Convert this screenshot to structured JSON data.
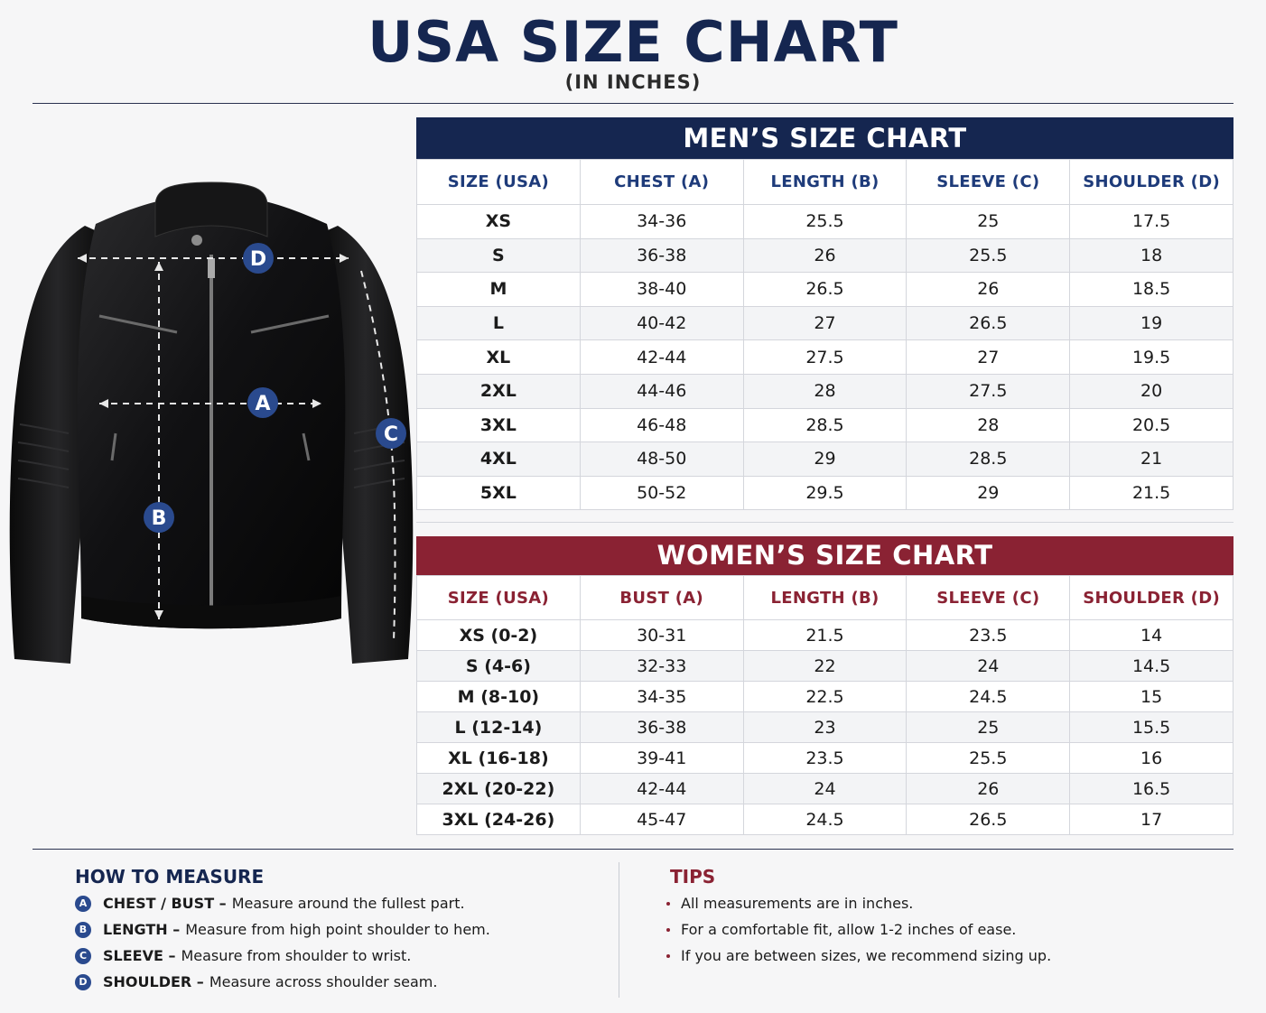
{
  "title": "USA SIZE CHART",
  "subtitle": "(IN INCHES)",
  "markers": {
    "a": "A",
    "b": "B",
    "c": "C",
    "d": "D"
  },
  "colors": {
    "navy": "#152650",
    "maroon": "#8a2233",
    "badge": "#2a4a8e"
  },
  "mens": {
    "heading": "MEN’S SIZE CHART",
    "columns": [
      "SIZE (USA)",
      "CHEST (A)",
      "LENGTH (B)",
      "SLEEVE (C)",
      "SHOULDER (D)"
    ],
    "rows": [
      [
        "XS",
        "34-36",
        "25.5",
        "25",
        "17.5"
      ],
      [
        "S",
        "36-38",
        "26",
        "25.5",
        "18"
      ],
      [
        "M",
        "38-40",
        "26.5",
        "26",
        "18.5"
      ],
      [
        "L",
        "40-42",
        "27",
        "26.5",
        "19"
      ],
      [
        "XL",
        "42-44",
        "27.5",
        "27",
        "19.5"
      ],
      [
        "2XL",
        "44-46",
        "28",
        "27.5",
        "20"
      ],
      [
        "3XL",
        "46-48",
        "28.5",
        "28",
        "20.5"
      ],
      [
        "4XL",
        "48-50",
        "29",
        "28.5",
        "21"
      ],
      [
        "5XL",
        "50-52",
        "29.5",
        "29",
        "21.5"
      ]
    ]
  },
  "womens": {
    "heading": "WOMEN’S SIZE CHART",
    "columns": [
      "SIZE (USA)",
      "BUST (A)",
      "LENGTH (B)",
      "SLEEVE (C)",
      "SHOULDER (D)"
    ],
    "rows": [
      [
        "XS (0-2)",
        "30-31",
        "21.5",
        "23.5",
        "14"
      ],
      [
        "S (4-6)",
        "32-33",
        "22",
        "24",
        "14.5"
      ],
      [
        "M (8-10)",
        "34-35",
        "22.5",
        "24.5",
        "15"
      ],
      [
        "L (12-14)",
        "36-38",
        "23",
        "25",
        "15.5"
      ],
      [
        "XL (16-18)",
        "39-41",
        "23.5",
        "25.5",
        "16"
      ],
      [
        "2XL (20-22)",
        "42-44",
        "24",
        "26",
        "16.5"
      ],
      [
        "3XL (24-26)",
        "45-47",
        "24.5",
        "26.5",
        "17"
      ]
    ]
  },
  "how_to_measure": {
    "title": "HOW TO MEASURE",
    "items": [
      {
        "badge": "A",
        "term": "CHEST / BUST –",
        "desc": "Measure around the fullest part."
      },
      {
        "badge": "B",
        "term": "LENGTH –",
        "desc": "Measure from high point shoulder to hem."
      },
      {
        "badge": "C",
        "term": "SLEEVE –",
        "desc": "Measure from shoulder to wrist."
      },
      {
        "badge": "D",
        "term": "SHOULDER –",
        "desc": "Measure across shoulder seam."
      }
    ]
  },
  "tips": {
    "title": "TIPS",
    "items": [
      "All measurements are in inches.",
      "For a comfortable fit, allow 1-2 inches of ease.",
      "If you are between sizes, we recommend sizing up."
    ]
  }
}
